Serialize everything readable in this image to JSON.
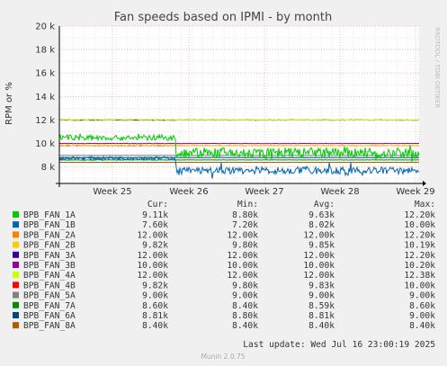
{
  "chart_data": {
    "type": "line",
    "title": "Fan speeds based on IPMI - by month",
    "ylabel": "RPM or %",
    "side_label": "RRDTOOL / TOBI OETIKER",
    "ylim": [
      6600,
      20000
    ],
    "y_ticks": [
      8000,
      10000,
      12000,
      14000,
      16000,
      18000,
      20000
    ],
    "y_tick_labels": [
      "8 k",
      "10 k",
      "12 k",
      "14 k",
      "16 k",
      "18 k",
      "20 k"
    ],
    "x_tick_labels": [
      "Week 25",
      "Week 26",
      "Week 27",
      "Week 28",
      "Week 29"
    ],
    "legend_headers": {
      "cur": "Cur:",
      "min": "Min:",
      "avg": "Avg:",
      "max": "Max:"
    },
    "series": [
      {
        "name": "BPB_FAN_1A",
        "color": "#00cc00",
        "cur": "9.11k",
        "min": "8.80k",
        "avg": "9.63k",
        "max": "12.20k",
        "before": 10500,
        "after": 9200,
        "noise_before": 250,
        "noise_after": 450
      },
      {
        "name": "BPB_FAN_1B",
        "color": "#0066b3",
        "cur": "7.60k",
        "min": "7.20k",
        "avg": "8.02k",
        "max": "10.00k",
        "before": 8750,
        "after": 7700,
        "noise_before": 150,
        "noise_after": 300
      },
      {
        "name": "BPB_FAN_2A",
        "color": "#ff8000",
        "cur": "12.00k",
        "min": "12.00k",
        "avg": "12.00k",
        "max": "12.20k",
        "before": 12000,
        "after": 12000,
        "noise_before": 30,
        "noise_after": 20
      },
      {
        "name": "BPB_FAN_2B",
        "color": "#ffcc00",
        "cur": "9.82k",
        "min": "9.80k",
        "avg": "9.85k",
        "max": "10.19k",
        "before": 9840,
        "after": 9820,
        "noise_before": 40,
        "noise_after": 15
      },
      {
        "name": "BPB_FAN_3A",
        "color": "#330099",
        "cur": "12.00k",
        "min": "12.00k",
        "avg": "12.00k",
        "max": "12.20k",
        "before": 12000,
        "after": 12000,
        "noise_before": 25,
        "noise_after": 15
      },
      {
        "name": "BPB_FAN_3B",
        "color": "#990099",
        "cur": "10.00k",
        "min": "10.00k",
        "avg": "10.00k",
        "max": "10.20k",
        "before": 10000,
        "after": 10000,
        "noise_before": 25,
        "noise_after": 10
      },
      {
        "name": "BPB_FAN_4A",
        "color": "#ccff00",
        "cur": "12.00k",
        "min": "12.00k",
        "avg": "12.00k",
        "max": "12.38k",
        "before": 12020,
        "after": 12000,
        "noise_before": 50,
        "noise_after": 15
      },
      {
        "name": "BPB_FAN_4B",
        "color": "#ff0000",
        "cur": "9.82k",
        "min": "9.80k",
        "avg": "9.83k",
        "max": "10.00k",
        "before": 9820,
        "after": 9820,
        "noise_before": 15,
        "noise_after": 10
      },
      {
        "name": "BPB_FAN_5A",
        "color": "#808080",
        "cur": "9.00k",
        "min": "9.00k",
        "avg": "9.00k",
        "max": "9.00k",
        "before": 9000,
        "after": 9000,
        "noise_before": 0,
        "noise_after": 0
      },
      {
        "name": "BPB_FAN_7A",
        "color": "#008f00",
        "cur": "8.60k",
        "min": "8.40k",
        "avg": "8.59k",
        "max": "8.60k",
        "before": 8600,
        "after": 8600,
        "noise_before": 20,
        "noise_after": 10
      },
      {
        "name": "BPB_FAN_6A",
        "color": "#00487d",
        "cur": "8.81k",
        "min": "8.80k",
        "avg": "8.81k",
        "max": "9.00k",
        "before": 8810,
        "after": 8810,
        "noise_before": 20,
        "noise_after": 10
      },
      {
        "name": "BPB_FAN_8A",
        "color": "#b35a00",
        "cur": "8.40k",
        "min": "8.40k",
        "avg": "8.40k",
        "max": "8.40k",
        "before": 8400,
        "after": 8400,
        "noise_before": 0,
        "noise_after": 0
      }
    ],
    "last_update": "Last update: Wed Jul 16 23:00:19 2025",
    "footer": "Munin 2.0.75"
  }
}
